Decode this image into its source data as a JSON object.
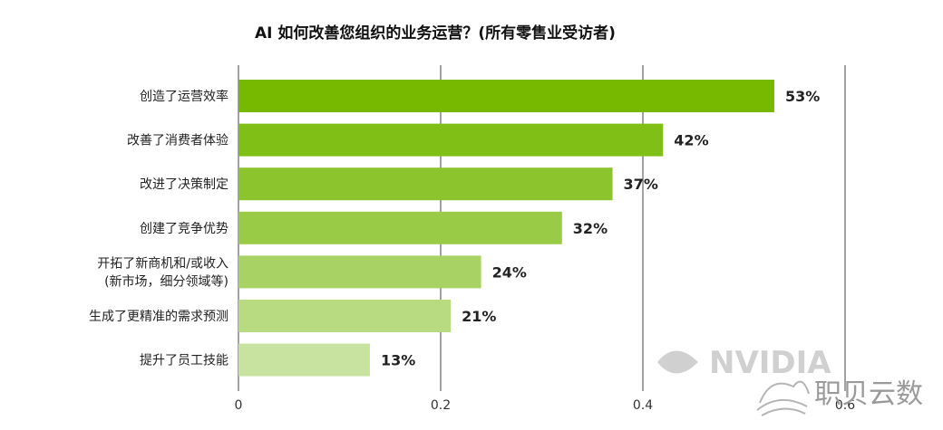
{
  "chart_data": {
    "type": "bar",
    "orientation": "horizontal",
    "title": "AI 如何改善您组织的业务运营？(所有零售业受访者)",
    "categories": [
      [
        "创造了运营效率"
      ],
      [
        "改善了消费者体验"
      ],
      [
        "改进了决策制定"
      ],
      [
        "创建了竞争优势"
      ],
      [
        "开拓了新商机和/或收入",
        "(新市场，细分领域等)"
      ],
      [
        "生成了更精准的需求预测"
      ],
      [
        "提升了员工技能"
      ]
    ],
    "values": [
      0.53,
      0.42,
      0.37,
      0.32,
      0.24,
      0.21,
      0.13
    ],
    "value_labels": [
      "53%",
      "42%",
      "37%",
      "32%",
      "24%",
      "21%",
      "13%"
    ],
    "xlim": [
      0,
      0.6
    ],
    "xticks": [
      "0",
      "0.2",
      "0.4",
      "0.6"
    ],
    "grid": "vertical",
    "bar_colors": [
      "#76b900",
      "#80bf16",
      "#8bc42c",
      "#9acb47",
      "#a9d264",
      "#b8da80",
      "#c8e3a0"
    ]
  },
  "watermarks": {
    "brand": "NVIDIA",
    "source": "职贝云数"
  }
}
